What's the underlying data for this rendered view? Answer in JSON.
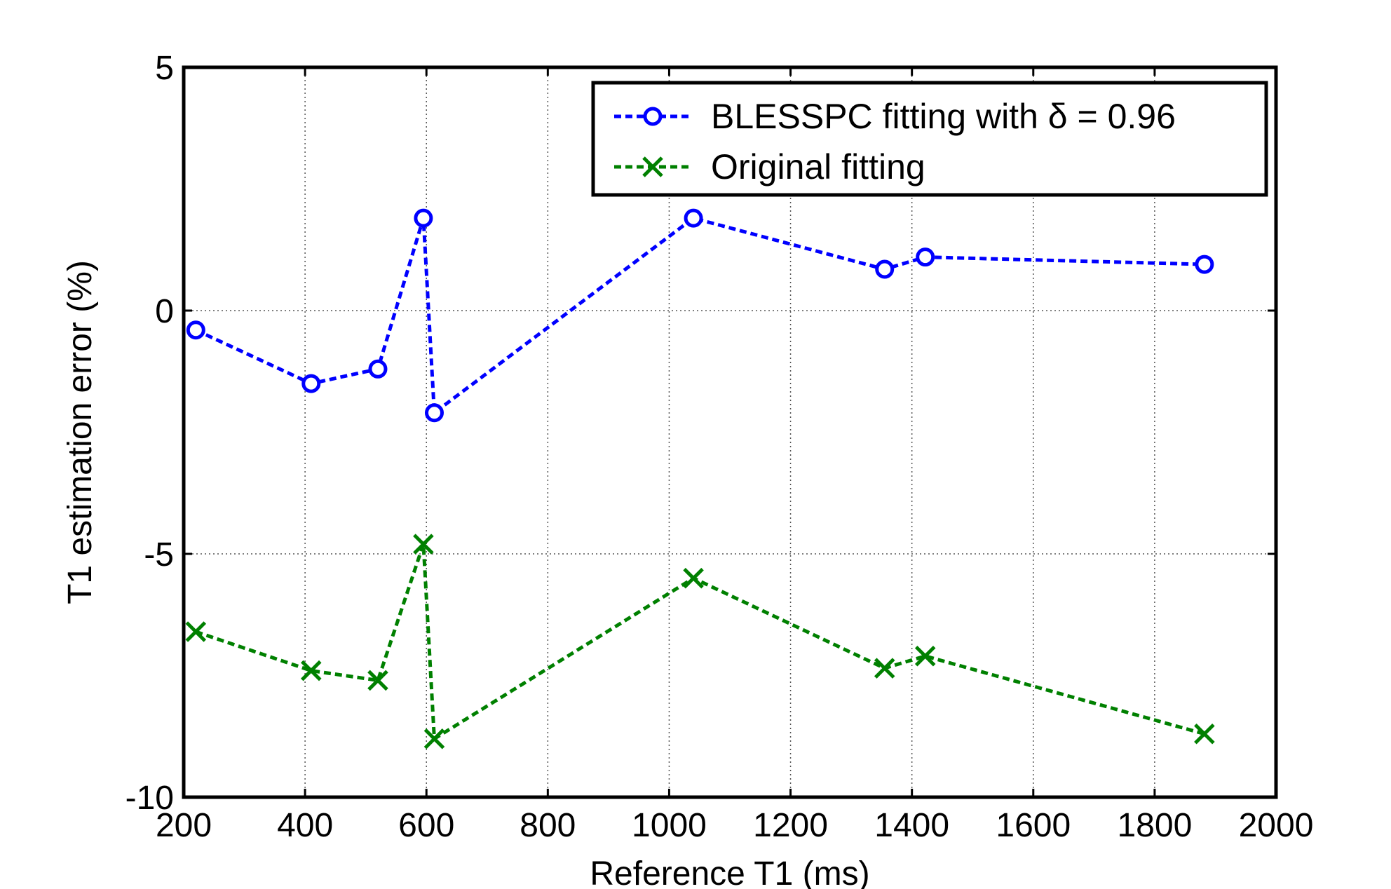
{
  "chart_data": {
    "type": "line",
    "xlabel": "Reference T1 (ms)",
    "ylabel": "T1 estimation error (%)",
    "xlim": [
      200,
      2000
    ],
    "ylim": [
      -10,
      5
    ],
    "xticks": [
      200,
      400,
      600,
      800,
      1000,
      1200,
      1400,
      1600,
      1800,
      2000
    ],
    "yticks": [
      5,
      0,
      -5,
      -10
    ],
    "grid": true,
    "legend_position": "top-right",
    "series": [
      {
        "name": "BLESSPC fitting with δ = 0.96",
        "color": "#0000ff",
        "marker": "circle",
        "line_style": "dashed",
        "x": [
          220,
          410,
          520,
          595,
          613,
          1040,
          1355,
          1422,
          1882
        ],
        "y": [
          -0.4,
          -1.5,
          -1.2,
          1.9,
          -2.1,
          1.9,
          0.85,
          1.1,
          0.95
        ]
      },
      {
        "name": "Original fitting",
        "color": "#008000",
        "marker": "x",
        "line_style": "dashed",
        "x": [
          220,
          410,
          520,
          595,
          613,
          1040,
          1355,
          1422,
          1882
        ],
        "y": [
          -6.6,
          -7.4,
          -7.6,
          -4.8,
          -8.8,
          -5.5,
          -7.35,
          -7.1,
          -8.7
        ]
      }
    ]
  }
}
